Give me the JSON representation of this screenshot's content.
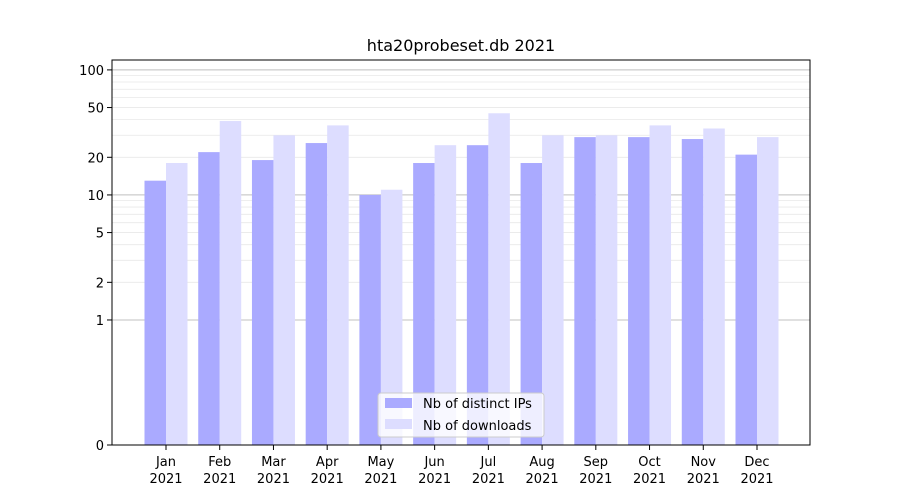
{
  "chart_data": {
    "type": "bar",
    "title": "hta20probeset.db 2021",
    "xlabel": "",
    "ylabel": "",
    "yscale": "symlog",
    "ylim": [
      0,
      120
    ],
    "yticks": [
      {
        "value": 0,
        "label": "0"
      },
      {
        "value": 1,
        "label": "1"
      },
      {
        "value": 2,
        "label": "2"
      },
      {
        "value": 5,
        "label": "5"
      },
      {
        "value": 10,
        "label": "10"
      },
      {
        "value": 20,
        "label": "20"
      },
      {
        "value": 50,
        "label": "50"
      },
      {
        "value": 100,
        "label": "100"
      }
    ],
    "categories": [
      [
        "Jan",
        "2021"
      ],
      [
        "Feb",
        "2021"
      ],
      [
        "Mar",
        "2021"
      ],
      [
        "Apr",
        "2021"
      ],
      [
        "May",
        "2021"
      ],
      [
        "Jun",
        "2021"
      ],
      [
        "Jul",
        "2021"
      ],
      [
        "Aug",
        "2021"
      ],
      [
        "Sep",
        "2021"
      ],
      [
        "Oct",
        "2021"
      ],
      [
        "Nov",
        "2021"
      ],
      [
        "Dec",
        "2021"
      ]
    ],
    "series": [
      {
        "name": "Nb of distinct IPs",
        "color": "#aaaaff",
        "values": [
          13,
          22,
          19,
          26,
          10,
          18,
          25,
          18,
          29,
          29,
          28,
          21
        ]
      },
      {
        "name": "Nb of downloads",
        "color": "#ddddff",
        "values": [
          18,
          39,
          30,
          36,
          11,
          25,
          45,
          30,
          30,
          36,
          34,
          29
        ]
      }
    ],
    "grid": true,
    "legend_position": "bottom-center"
  }
}
